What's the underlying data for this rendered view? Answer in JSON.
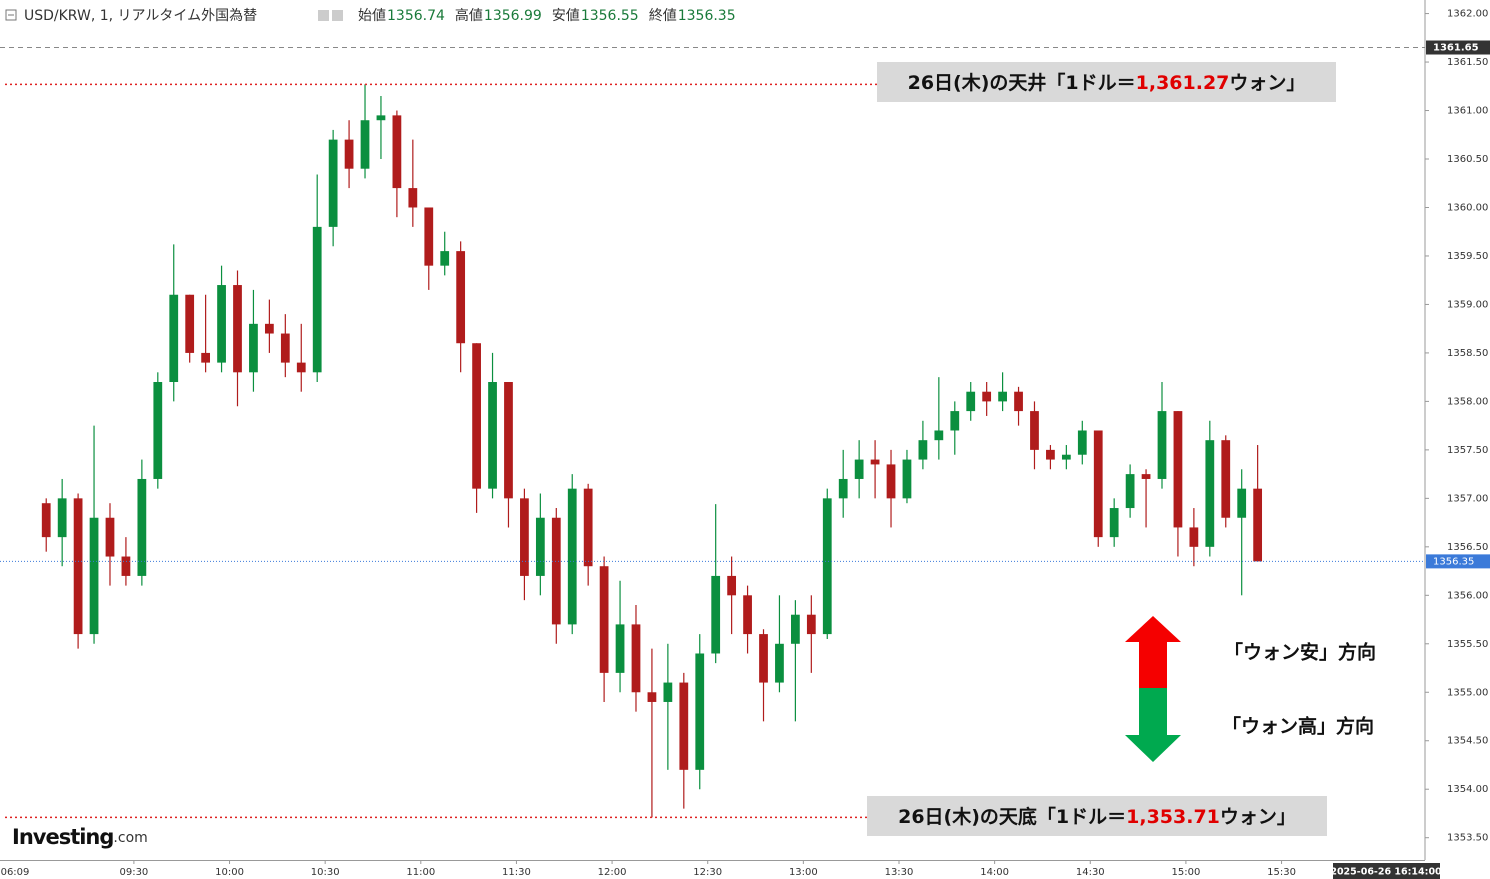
{
  "chart_data": {
    "type": "candlestick",
    "title": "USD/KRW, 1, リアルタイム外国為替",
    "ohlc_summary": [
      {
        "label": "始値",
        "value": 1356.74
      },
      {
        "label": "高値",
        "value": 1356.99
      },
      {
        "label": "安値",
        "value": 1356.55
      },
      {
        "label": "終値",
        "value": 1356.35
      }
    ],
    "x": [
      "09:00",
      "09:05",
      "09:10",
      "09:15",
      "09:20",
      "09:25",
      "09:30",
      "09:35",
      "09:40",
      "09:45",
      "09:50",
      "09:55",
      "10:00",
      "10:05",
      "10:10",
      "10:15",
      "10:20",
      "10:25",
      "10:30",
      "10:35",
      "10:40",
      "10:45",
      "10:50",
      "10:55",
      "11:00",
      "11:05",
      "11:10",
      "11:15",
      "11:20",
      "11:25",
      "11:30",
      "11:35",
      "11:40",
      "11:45",
      "11:50",
      "11:55",
      "12:00",
      "12:05",
      "12:10",
      "12:15",
      "12:20",
      "12:25",
      "12:30",
      "12:35",
      "12:40",
      "12:45",
      "12:50",
      "12:55",
      "13:00",
      "13:05",
      "13:10",
      "13:15",
      "13:20",
      "13:25",
      "13:30",
      "13:35",
      "13:40",
      "13:45",
      "13:50",
      "13:55",
      "14:00",
      "14:05",
      "14:10",
      "14:15",
      "14:20",
      "14:25",
      "14:30",
      "14:35",
      "14:40",
      "14:45",
      "14:50",
      "14:55",
      "15:00",
      "15:05",
      "15:10",
      "15:15",
      "15:20"
    ],
    "open": [
      1356.95,
      1356.6,
      1357.0,
      1355.6,
      1356.8,
      1356.4,
      1356.2,
      1357.2,
      1358.2,
      1359.1,
      1358.5,
      1358.4,
      1359.2,
      1358.3,
      1358.8,
      1358.7,
      1358.4,
      1358.3,
      1359.8,
      1360.7,
      1360.4,
      1360.9,
      1360.95,
      1360.2,
      1360.0,
      1359.4,
      1359.55,
      1358.6,
      1357.1,
      1358.2,
      1357.0,
      1356.2,
      1356.8,
      1355.7,
      1357.1,
      1356.3,
      1355.2,
      1355.7,
      1355.0,
      1354.9,
      1355.1,
      1354.2,
      1355.4,
      1356.2,
      1356.0,
      1355.6,
      1355.1,
      1355.5,
      1355.8,
      1355.6,
      1357.0,
      1357.2,
      1357.4,
      1357.35,
      1357.0,
      1357.4,
      1357.6,
      1357.7,
      1357.9,
      1358.1,
      1358.0,
      1358.1,
      1357.9,
      1357.5,
      1357.4,
      1357.45,
      1357.7,
      1356.6,
      1356.9,
      1357.25,
      1357.2,
      1357.9,
      1356.7,
      1356.5,
      1357.6,
      1356.8,
      1357.1
    ],
    "high": [
      1357.0,
      1357.2,
      1357.05,
      1357.75,
      1356.95,
      1356.6,
      1357.4,
      1358.3,
      1359.62,
      1359.1,
      1359.1,
      1359.4,
      1359.35,
      1359.15,
      1359.05,
      1358.9,
      1358.8,
      1360.34,
      1360.8,
      1360.9,
      1361.27,
      1361.15,
      1361.0,
      1360.7,
      1360.0,
      1359.75,
      1359.65,
      1358.6,
      1358.5,
      1358.2,
      1357.1,
      1357.05,
      1356.9,
      1357.25,
      1357.15,
      1356.4,
      1356.15,
      1355.9,
      1355.45,
      1355.5,
      1355.2,
      1355.6,
      1356.94,
      1356.4,
      1356.1,
      1355.65,
      1356.0,
      1355.95,
      1356.0,
      1357.1,
      1357.5,
      1357.6,
      1357.6,
      1357.5,
      1357.5,
      1357.8,
      1358.25,
      1358.0,
      1358.2,
      1358.2,
      1358.3,
      1358.15,
      1358.0,
      1357.55,
      1357.55,
      1357.8,
      1357.7,
      1357.0,
      1357.35,
      1357.3,
      1358.2,
      1357.9,
      1356.9,
      1357.8,
      1357.65,
      1357.3,
      1357.55
    ],
    "low": [
      1356.45,
      1356.3,
      1355.45,
      1355.5,
      1356.1,
      1356.1,
      1356.1,
      1357.1,
      1358.0,
      1358.4,
      1358.3,
      1358.3,
      1357.95,
      1358.1,
      1358.5,
      1358.25,
      1358.1,
      1358.2,
      1359.6,
      1360.2,
      1360.3,
      1360.5,
      1359.9,
      1359.8,
      1359.15,
      1359.3,
      1358.3,
      1356.85,
      1357.0,
      1356.7,
      1355.95,
      1356.0,
      1355.5,
      1355.6,
      1356.1,
      1354.9,
      1355.0,
      1354.8,
      1353.71,
      1354.2,
      1353.8,
      1354.0,
      1355.3,
      1355.6,
      1355.4,
      1354.7,
      1355.0,
      1354.7,
      1355.2,
      1355.55,
      1356.8,
      1357.0,
      1357.0,
      1356.7,
      1356.95,
      1357.3,
      1357.4,
      1357.45,
      1357.8,
      1357.85,
      1357.9,
      1357.75,
      1357.3,
      1357.3,
      1357.3,
      1357.35,
      1356.5,
      1356.5,
      1356.8,
      1356.7,
      1357.1,
      1356.4,
      1356.3,
      1356.4,
      1356.7,
      1356.0,
      1356.35
    ],
    "close": [
      1356.6,
      1357.0,
      1355.6,
      1356.8,
      1356.4,
      1356.2,
      1357.2,
      1358.2,
      1359.1,
      1358.5,
      1358.4,
      1359.2,
      1358.3,
      1358.8,
      1358.7,
      1358.4,
      1358.3,
      1359.8,
      1360.7,
      1360.4,
      1360.9,
      1360.95,
      1360.2,
      1360.0,
      1359.4,
      1359.55,
      1358.6,
      1357.1,
      1358.2,
      1357.0,
      1356.2,
      1356.8,
      1355.7,
      1357.1,
      1356.3,
      1355.2,
      1355.7,
      1355.0,
      1354.9,
      1355.1,
      1354.2,
      1355.4,
      1356.2,
      1356.0,
      1355.6,
      1355.1,
      1355.5,
      1355.8,
      1355.6,
      1357.0,
      1357.2,
      1357.4,
      1357.35,
      1357.0,
      1357.4,
      1357.6,
      1357.7,
      1357.9,
      1358.1,
      1358.0,
      1358.1,
      1357.9,
      1357.5,
      1357.4,
      1357.45,
      1357.7,
      1356.6,
      1356.9,
      1357.25,
      1357.2,
      1357.9,
      1356.7,
      1356.5,
      1357.6,
      1356.8,
      1357.1,
      1356.35
    ],
    "up_color": "#0b8f3f",
    "down_color": "#b01c1c",
    "xlim": [
      "08:48",
      "16:15"
    ],
    "x_start_label": "06:09",
    "xticks": [
      "09:30",
      "10:00",
      "10:30",
      "11:00",
      "11:30",
      "12:00",
      "12:30",
      "13:00",
      "13:30",
      "14:00",
      "14:30",
      "15:00",
      "15:30"
    ],
    "ylim": [
      1353.27,
      1362.14
    ],
    "yticks": [
      {
        "value": 1353.5,
        "label": "1353.50"
      },
      {
        "value": 1354,
        "label": "1354.00"
      },
      {
        "value": 1354.5,
        "label": "1354.50"
      },
      {
        "value": 1355,
        "label": "1355.00"
      },
      {
        "value": 1355.5,
        "label": "1355.50"
      },
      {
        "value": 1356,
        "label": "1356.00"
      },
      {
        "value": 1356.5,
        "label": "1356.50"
      },
      {
        "value": 1357,
        "label": "1357.00"
      },
      {
        "value": 1357.5,
        "label": "1357.50"
      },
      {
        "value": 1358,
        "label": "1358.00"
      },
      {
        "value": 1358.5,
        "label": "1358.50"
      },
      {
        "value": 1359,
        "label": "1359.00"
      },
      {
        "value": 1359.5,
        "label": "1359.50"
      },
      {
        "value": 1360,
        "label": "1360.00"
      },
      {
        "value": 1360.5,
        "label": "1360.50"
      },
      {
        "value": 1361,
        "label": "1361.00"
      },
      {
        "value": 1361.5,
        "label": "1361.50"
      },
      {
        "value": 1362,
        "label": "1362.00"
      }
    ],
    "last_price": 1356.35,
    "crosshair_price": 1361.65,
    "crosshair_time": "2025-06-26 16:14:00",
    "annotations": [
      {
        "prefix": "26日(木)の天井「1ドル＝",
        "value": 1361.27,
        "value_label": "1,361.27",
        "suffix": "ウォン」"
      },
      {
        "prefix": "26日(木)の天底「1ドル＝",
        "value": 1353.71,
        "value_label": "1,353.71",
        "suffix": "ウォン」"
      }
    ],
    "direction_labels": [
      "「ウォン安」方向",
      "「ウォン高」方向"
    ],
    "logo": {
      "main": "Investing",
      "suffix": ".com"
    }
  }
}
